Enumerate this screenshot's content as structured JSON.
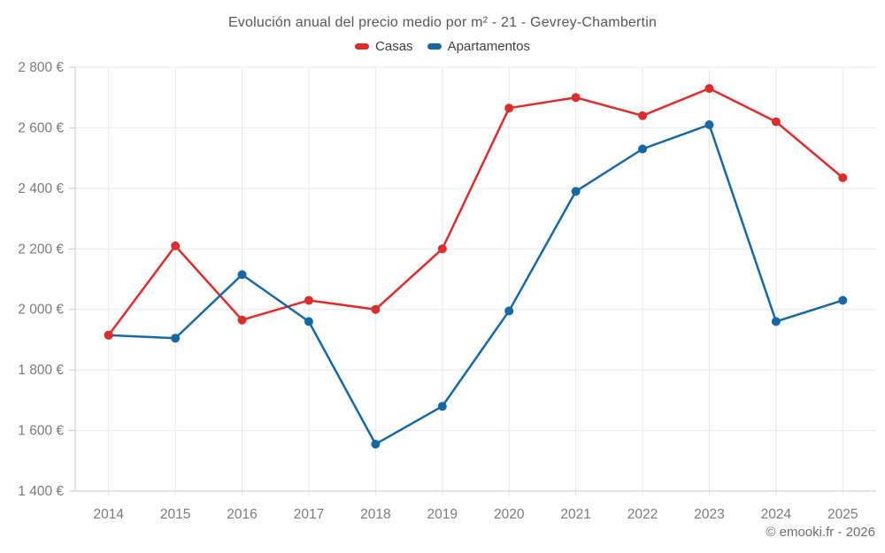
{
  "title": "Evolución anual del precio medio por m² - 21 - Gevrey-Chambertin",
  "watermark": "© emooki.fr - 2026",
  "colors": {
    "casas": "#dc2c2c",
    "apartamentos": "#1568a3",
    "grid": "#e8e8e8",
    "axis": "#c8c8c8",
    "tick_text": "#7a7a7a",
    "title_text": "#565656",
    "legend_text": "#404040",
    "background": "#ffffff"
  },
  "chart_data": {
    "type": "line",
    "title": "Evolución anual del precio medio por m² - 21 - Gevrey-Chambertin",
    "categories": [
      "2014",
      "2015",
      "2016",
      "2017",
      "2018",
      "2019",
      "2020",
      "2021",
      "2022",
      "2023",
      "2024",
      "2025"
    ],
    "series": [
      {
        "name": "Casas",
        "color": "#dc2c2c",
        "values": [
          1915,
          2210,
          1965,
          2030,
          2000,
          2200,
          2665,
          2700,
          2640,
          2730,
          2620,
          2435
        ]
      },
      {
        "name": "Apartamentos",
        "color": "#1568a3",
        "values": [
          1915,
          1905,
          2115,
          1960,
          1555,
          1680,
          1995,
          2390,
          2530,
          2610,
          1960,
          2030
        ]
      }
    ],
    "xlabel": "",
    "ylabel": "",
    "ylim": [
      1400,
      2800
    ],
    "ytick_step": 200,
    "ytick_labels": [
      "1 400 €",
      "1 600 €",
      "1 800 €",
      "2 000 €",
      "2 200 €",
      "2 400 €",
      "2 600 €",
      "2 800 €"
    ],
    "currency": "€",
    "grid": true,
    "legend_position": "top",
    "marker": "circle",
    "marker_radius": 5
  }
}
